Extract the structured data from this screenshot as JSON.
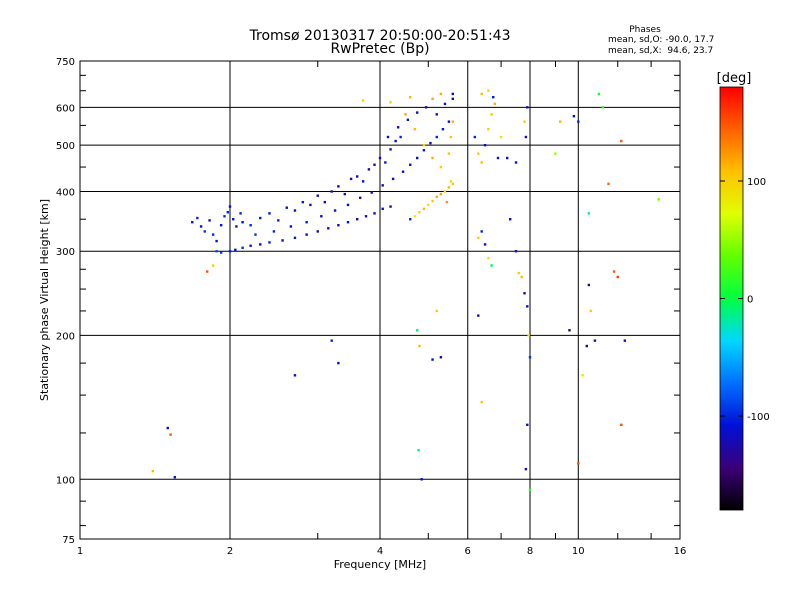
{
  "chart_data": {
    "type": "scatter",
    "title": "Tromsø 20130317 20:50:00-20:51:43",
    "subtitle": "RwPretec (Bp)",
    "xlabel": "Frequency [MHz]",
    "ylabel": "Stationary phase Virtual Height [km]",
    "x_scale": "log",
    "y_scale": "log",
    "xlim": [
      1,
      16
    ],
    "ylim": [
      75,
      750
    ],
    "xticks": [
      1,
      2,
      4,
      6,
      8,
      10,
      16
    ],
    "xtick_labels": [
      "1",
      "2",
      "4",
      "6",
      "8",
      "10",
      "16"
    ],
    "yticks": [
      75,
      100,
      200,
      300,
      400,
      500,
      600,
      750
    ],
    "ytick_labels": [
      "75",
      "100",
      "200",
      "300",
      "400",
      "500",
      "600",
      "750"
    ],
    "grid": true,
    "phase_stats": {
      "header": "Phases",
      "line_o": "mean, sd,O: -90.0, 17.7",
      "line_x": "mean, sd,X:  94.6, 23.7"
    },
    "colorbar": {
      "label": "[deg]",
      "range": [
        -180,
        180
      ],
      "ticks": [
        100,
        0,
        -100
      ],
      "tick_labels": [
        "100",
        "0",
        "-100"
      ]
    },
    "points": [
      [
        1.68,
        345,
        -105
      ],
      [
        1.72,
        352,
        -100
      ],
      [
        1.75,
        338,
        -110
      ],
      [
        1.78,
        330,
        -95
      ],
      [
        1.82,
        348,
        -120
      ],
      [
        1.85,
        325,
        -100
      ],
      [
        1.88,
        315,
        -105
      ],
      [
        1.92,
        340,
        -110
      ],
      [
        1.95,
        355,
        -95
      ],
      [
        1.98,
        362,
        -100
      ],
      [
        2.0,
        372,
        -110
      ],
      [
        2.03,
        350,
        -105
      ],
      [
        2.06,
        338,
        -120
      ],
      [
        2.1,
        360,
        -100
      ],
      [
        2.12,
        345,
        -115
      ],
      [
        1.88,
        300,
        -85
      ],
      [
        1.92,
        298,
        -90
      ],
      [
        2.0,
        300,
        -100
      ],
      [
        2.05,
        302,
        -110
      ],
      [
        2.12,
        305,
        -95
      ],
      [
        2.2,
        308,
        -105
      ],
      [
        2.3,
        310,
        -110
      ],
      [
        2.4,
        313,
        -100
      ],
      [
        2.55,
        316,
        -120
      ],
      [
        2.7,
        320,
        -105
      ],
      [
        2.85,
        325,
        -110
      ],
      [
        3.0,
        330,
        -125
      ],
      [
        3.15,
        335,
        -115
      ],
      [
        3.3,
        340,
        -120
      ],
      [
        3.45,
        345,
        -110
      ],
      [
        3.6,
        350,
        -130
      ],
      [
        3.75,
        355,
        -120
      ],
      [
        3.9,
        360,
        -115
      ],
      [
        4.05,
        368,
        -110
      ],
      [
        4.2,
        372,
        -120
      ],
      [
        2.2,
        340,
        -100
      ],
      [
        2.3,
        352,
        -105
      ],
      [
        2.4,
        360,
        -110
      ],
      [
        2.5,
        348,
        -100
      ],
      [
        2.6,
        370,
        -115
      ],
      [
        2.7,
        365,
        -110
      ],
      [
        2.8,
        380,
        -105
      ],
      [
        2.9,
        375,
        -120
      ],
      [
        3.0,
        392,
        -110
      ],
      [
        3.1,
        380,
        -115
      ],
      [
        3.2,
        400,
        -125
      ],
      [
        3.3,
        410,
        -120
      ],
      [
        3.4,
        395,
        -115
      ],
      [
        3.5,
        425,
        -130
      ],
      [
        3.6,
        430,
        -120
      ],
      [
        3.7,
        420,
        -110
      ],
      [
        3.8,
        445,
        -125
      ],
      [
        3.9,
        455,
        -115
      ],
      [
        4.0,
        470,
        -120
      ],
      [
        4.1,
        460,
        -110
      ],
      [
        4.2,
        490,
        -105
      ],
      [
        4.3,
        510,
        -115
      ],
      [
        4.4,
        520,
        -100
      ],
      [
        2.25,
        325,
        -95
      ],
      [
        2.45,
        330,
        -100
      ],
      [
        2.65,
        338,
        -110
      ],
      [
        2.85,
        345,
        -105
      ],
      [
        3.05,
        355,
        -115
      ],
      [
        3.25,
        365,
        -120
      ],
      [
        3.45,
        375,
        -110
      ],
      [
        3.65,
        388,
        -115
      ],
      [
        3.85,
        398,
        -120
      ],
      [
        4.05,
        412,
        -125
      ],
      [
        4.25,
        425,
        -115
      ],
      [
        4.45,
        440,
        -120
      ],
      [
        4.6,
        455,
        -110
      ],
      [
        4.75,
        470,
        -115
      ],
      [
        4.9,
        488,
        -105
      ],
      [
        5.05,
        505,
        -110
      ],
      [
        5.2,
        520,
        -100
      ],
      [
        5.35,
        540,
        -105
      ],
      [
        5.5,
        560,
        -110
      ],
      [
        4.15,
        520,
        -110
      ],
      [
        4.35,
        545,
        -115
      ],
      [
        4.55,
        565,
        -105
      ],
      [
        4.75,
        585,
        -110
      ],
      [
        4.95,
        600,
        -120
      ],
      [
        5.2,
        580,
        -115
      ],
      [
        5.4,
        610,
        -105
      ],
      [
        5.6,
        625,
        -110
      ],
      [
        5.6,
        640,
        -115
      ],
      [
        4.6,
        350,
        -100
      ],
      [
        4.7,
        355,
        80
      ],
      [
        4.8,
        362,
        95
      ],
      [
        4.9,
        368,
        110
      ],
      [
        5.0,
        375,
        90
      ],
      [
        5.1,
        382,
        100
      ],
      [
        5.2,
        390,
        115
      ],
      [
        5.3,
        395,
        120
      ],
      [
        5.4,
        400,
        95
      ],
      [
        5.5,
        408,
        110
      ],
      [
        5.6,
        415,
        105
      ],
      [
        5.45,
        380,
        125
      ],
      [
        5.55,
        420,
        90
      ],
      [
        5.3,
        450,
        100
      ],
      [
        5.1,
        470,
        115
      ],
      [
        4.9,
        500,
        95
      ],
      [
        4.7,
        540,
        110
      ],
      [
        4.5,
        580,
        120
      ],
      [
        5.5,
        480,
        105
      ],
      [
        5.55,
        520,
        110
      ],
      [
        5.6,
        560,
        115
      ],
      [
        3.7,
        620,
        100
      ],
      [
        4.2,
        615,
        95
      ],
      [
        4.6,
        630,
        110
      ],
      [
        5.1,
        625,
        120
      ],
      [
        5.3,
        640,
        115
      ],
      [
        6.2,
        520,
        -100
      ],
      [
        6.3,
        480,
        100
      ],
      [
        6.4,
        460,
        110
      ],
      [
        6.5,
        500,
        -110
      ],
      [
        6.6,
        540,
        95
      ],
      [
        6.7,
        580,
        105
      ],
      [
        6.8,
        610,
        115
      ],
      [
        6.9,
        470,
        -115
      ],
      [
        7.0,
        520,
        90
      ],
      [
        7.2,
        470,
        -105
      ],
      [
        7.5,
        460,
        -110
      ],
      [
        7.8,
        560,
        100
      ],
      [
        7.85,
        520,
        -120
      ],
      [
        7.9,
        600,
        -115
      ],
      [
        6.4,
        640,
        110
      ],
      [
        6.6,
        650,
        95
      ],
      [
        6.75,
        630,
        -105
      ],
      [
        6.3,
        320,
        100
      ],
      [
        6.4,
        330,
        -100
      ],
      [
        6.5,
        310,
        -110
      ],
      [
        6.6,
        290,
        90
      ],
      [
        6.7,
        280,
        -10
      ],
      [
        7.3,
        350,
        -110
      ],
      [
        7.5,
        300,
        -115
      ],
      [
        7.6,
        270,
        100
      ],
      [
        7.7,
        265,
        110
      ],
      [
        7.8,
        245,
        -120
      ],
      [
        7.9,
        230,
        -110
      ],
      [
        7.95,
        200,
        90
      ],
      [
        8.0,
        180,
        -95
      ],
      [
        7.9,
        130,
        -110
      ],
      [
        8.0,
        95,
        10
      ],
      [
        7.85,
        105,
        -120
      ],
      [
        6.3,
        220,
        -115
      ],
      [
        6.4,
        145,
        105
      ],
      [
        4.75,
        205,
        -10
      ],
      [
        4.8,
        190,
        110
      ],
      [
        4.78,
        115,
        -10
      ],
      [
        4.85,
        100,
        -110
      ],
      [
        5.1,
        178,
        -110
      ],
      [
        5.3,
        180,
        -120
      ],
      [
        5.2,
        225,
        100
      ],
      [
        3.2,
        195,
        -100
      ],
      [
        3.3,
        175,
        -110
      ],
      [
        2.7,
        165,
        -115
      ],
      [
        1.5,
        128,
        -110
      ],
      [
        1.52,
        124,
        150
      ],
      [
        1.55,
        101,
        -105
      ],
      [
        1.4,
        104,
        110
      ],
      [
        1.8,
        272,
        150
      ],
      [
        1.85,
        280,
        100
      ],
      [
        9.0,
        480,
        50
      ],
      [
        9.2,
        560,
        110
      ],
      [
        9.6,
        205,
        -150
      ],
      [
        9.8,
        575,
        -115
      ],
      [
        10.0,
        560,
        -100
      ],
      [
        10.0,
        108,
        150
      ],
      [
        10.2,
        165,
        60
      ],
      [
        10.5,
        255,
        -130
      ],
      [
        10.6,
        225,
        100
      ],
      [
        10.4,
        190,
        -150
      ],
      [
        10.8,
        195,
        -135
      ],
      [
        11.0,
        640,
        10
      ],
      [
        11.2,
        600,
        20
      ],
      [
        11.5,
        415,
        140
      ],
      [
        11.8,
        272,
        150
      ],
      [
        12.0,
        265,
        160
      ],
      [
        12.2,
        510,
        150
      ],
      [
        12.4,
        195,
        -110
      ],
      [
        12.2,
        130,
        150
      ],
      [
        14.5,
        385,
        40
      ],
      [
        10.5,
        360,
        -20
      ]
    ]
  }
}
